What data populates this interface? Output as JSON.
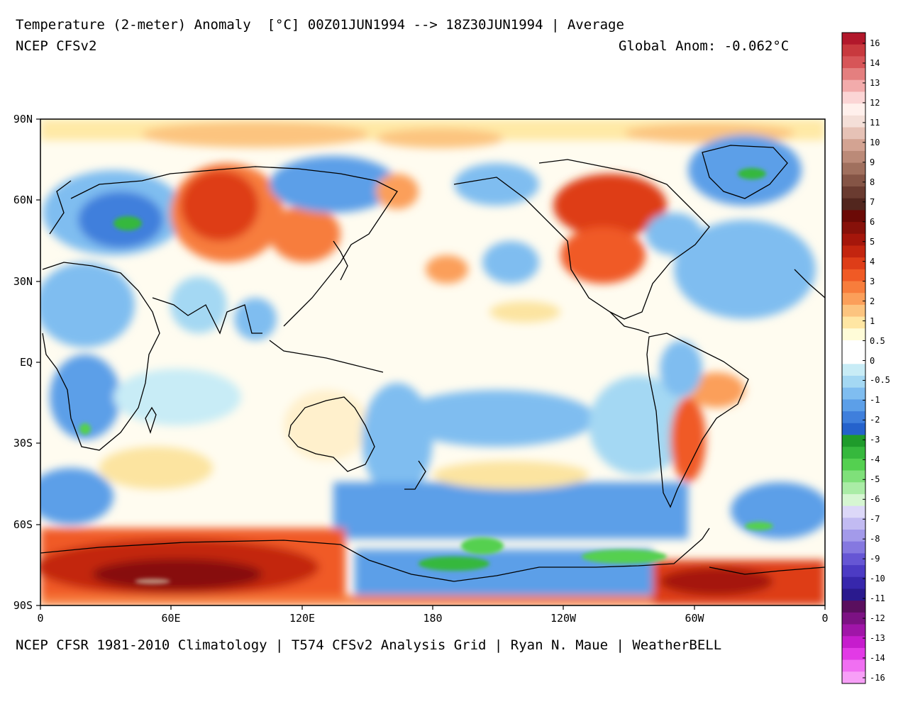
{
  "header": {
    "title": "Temperature (2-meter) Anomaly  [°C] 00Z01JUN1994 --> 18Z30JUN1994 | Average",
    "subtitle": "NCEP CFSv2",
    "global_anomaly": "Global Anom: -0.062°C"
  },
  "footer": {
    "credit": "NCEP CFSR 1981-2010 Climatology | T574 CFSv2 Analysis Grid | Ryan N. Maue | WeatherBELL"
  },
  "axes": {
    "lat_ticks": [
      "90N",
      "60N",
      "30N",
      "EQ",
      "30S",
      "60S",
      "90S"
    ],
    "lon_ticks": [
      "0",
      "60E",
      "120E",
      "180",
      "120W",
      "60W",
      "0"
    ]
  },
  "colorbar": {
    "labels": [
      "16",
      "14",
      "13",
      "12",
      "11",
      "10",
      "9",
      "8",
      "7",
      "6",
      "5",
      "4",
      "3",
      "2",
      "1",
      "0.5",
      "0",
      "-0.5",
      "-1",
      "-2",
      "-3",
      "-4",
      "-5",
      "-6",
      "-7",
      "-8",
      "-9",
      "-10",
      "-11",
      "-12",
      "-13",
      "-14",
      "-16"
    ],
    "colors": [
      "#b2182b",
      "#c8393e",
      "#d75558",
      "#e47f7f",
      "#f2abab",
      "#fbd5d5",
      "#fff0ec",
      "#f4dfd8",
      "#e6c2b6",
      "#d3a392",
      "#bb8a78",
      "#a0705e",
      "#855546",
      "#6a3b30",
      "#52261e",
      "#6b0a06",
      "#87110a",
      "#a5160b",
      "#c3250f",
      "#de3d18",
      "#f05a25",
      "#f77d3c",
      "#fb9f5a",
      "#fcc47f",
      "#ffe6a3",
      "#fffcd8",
      "#ffffff",
      "#ffffff",
      "#c8ecf6",
      "#a4d8f3",
      "#7fbdf0",
      "#5c9fe8",
      "#3f7fdc",
      "#2562cc",
      "#1f9b2b",
      "#36b83d",
      "#54d050",
      "#7fe07a",
      "#aaeca6",
      "#d6f6d2",
      "#dcd8f8",
      "#c2bbf2",
      "#a39aea",
      "#8578e0",
      "#6656d4",
      "#4c3bc4",
      "#3727ac",
      "#2a1a8e",
      "#5a0f5e",
      "#7c1283",
      "#a015a8",
      "#c61ccd",
      "#e23ae6",
      "#f06ff2",
      "#f79ff7"
    ]
  },
  "legend_colors": {
    "strong_warm": "#c2250f",
    "warm": "#f77d3c",
    "mild_warm": "#fce4a0",
    "neutral": "#ffffff",
    "mild_cool": "#bfe6f4",
    "cool": "#5c9fe8",
    "strong_cool": "#36b83d"
  }
}
